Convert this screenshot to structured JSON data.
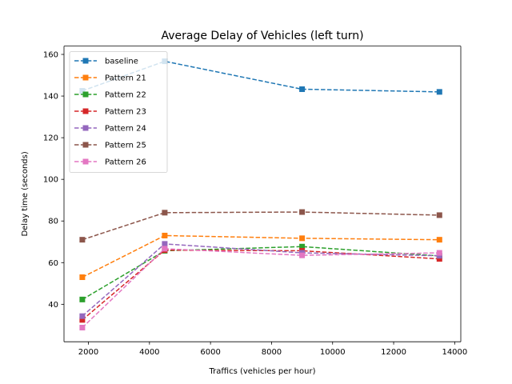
{
  "chart_data": {
    "type": "line",
    "title": "Average Delay of Vehicles (left turn)",
    "xlabel": "Traffics (vehicles per hour)",
    "ylabel": "Delay time (seconds)",
    "xlim": [
      1200,
      14200
    ],
    "ylim": [
      22,
      164
    ],
    "xticks": [
      2000,
      4000,
      6000,
      8000,
      10000,
      12000,
      14000
    ],
    "yticks": [
      40,
      60,
      80,
      100,
      120,
      140,
      160
    ],
    "grid": false,
    "legend_position": "upper-left",
    "line_style": "dashed",
    "marker": "square",
    "x": [
      1800,
      4500,
      9000,
      13500
    ],
    "series": [
      {
        "name": "baseline",
        "color": "#1f77b4",
        "values": [
          142.5,
          156.7,
          143.3,
          142.0
        ]
      },
      {
        "name": "Pattern 21",
        "color": "#ff7f0e",
        "values": [
          53.0,
          73.0,
          71.7,
          71.0
        ]
      },
      {
        "name": "Pattern 22",
        "color": "#2ca02c",
        "values": [
          42.3,
          65.7,
          67.7,
          63.2
        ]
      },
      {
        "name": "Pattern 23",
        "color": "#d62728",
        "values": [
          32.5,
          66.0,
          65.7,
          61.8
        ]
      },
      {
        "name": "Pattern 24",
        "color": "#9467bd",
        "values": [
          34.3,
          69.0,
          64.7,
          63.3
        ]
      },
      {
        "name": "Pattern 25",
        "color": "#8c564b",
        "values": [
          71.0,
          84.0,
          84.3,
          82.8
        ]
      },
      {
        "name": "Pattern 26",
        "color": "#e377c2",
        "values": [
          28.8,
          66.7,
          63.5,
          64.7
        ]
      }
    ]
  }
}
